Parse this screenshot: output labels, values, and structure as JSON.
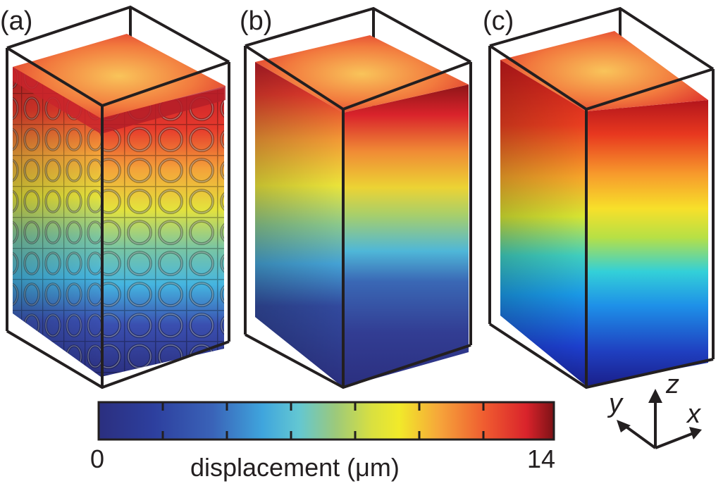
{
  "figure": {
    "panels": [
      {
        "id": "a",
        "label": "(a)"
      },
      {
        "id": "b",
        "label": "(b)"
      },
      {
        "id": "c",
        "label": "(c)"
      }
    ],
    "colorbar": {
      "min_label": "0",
      "max_label": "14",
      "title": "displacement (μm)",
      "colormap": [
        "#2b2f7f",
        "#2d3f9e",
        "#3a63b8",
        "#3fa5dd",
        "#45c2e0",
        "#8bc68f",
        "#c4d94a",
        "#f1ea2a",
        "#f7a53a",
        "#f0572f",
        "#d9232b",
        "#8d1518"
      ]
    },
    "axes": {
      "x": "x",
      "y": "y",
      "z": "z"
    }
  }
}
